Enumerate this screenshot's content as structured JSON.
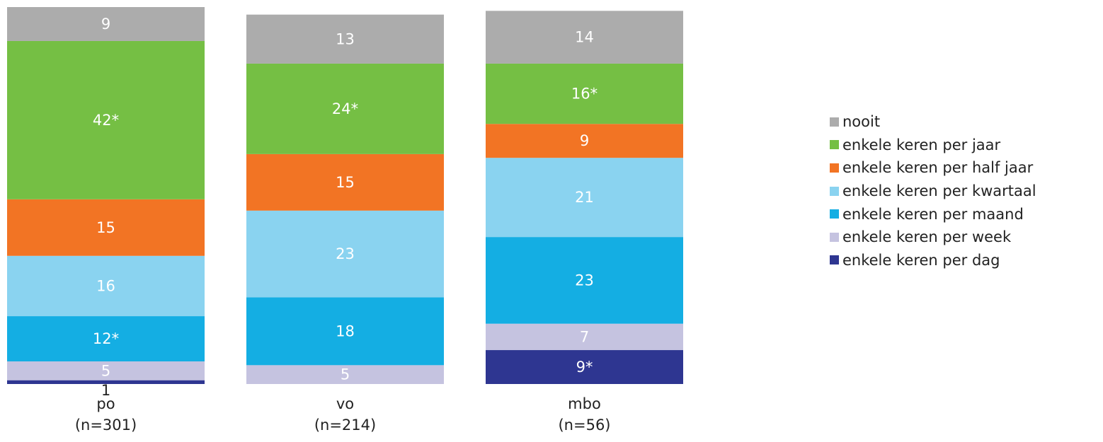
{
  "chart_data": {
    "type": "bar",
    "stacked": true,
    "percent": true,
    "categories": [
      "po",
      "vo",
      "mbo"
    ],
    "category_sublabels": [
      "(n=301)",
      "(n=214)",
      "(n=56)"
    ],
    "series": [
      {
        "name": "enkele keren per dag",
        "color": "#2e3691",
        "values": [
          1,
          0,
          9
        ],
        "labels": [
          "1",
          "",
          "9*"
        ]
      },
      {
        "name": "enkele keren per week",
        "color": "#c5c3e0",
        "values": [
          5,
          5,
          7
        ],
        "labels": [
          "5",
          "5",
          "7"
        ]
      },
      {
        "name": "enkele keren per maand",
        "color": "#14aee3",
        "values": [
          12,
          18,
          23
        ],
        "labels": [
          "12*",
          "18",
          "23"
        ]
      },
      {
        "name": "enkele keren per kwartaal",
        "color": "#8ad3f0",
        "values": [
          16,
          23,
          21
        ],
        "labels": [
          "16",
          "23",
          "21"
        ]
      },
      {
        "name": "enkele keren per half jaar",
        "color": "#f27424",
        "values": [
          15,
          15,
          9
        ],
        "labels": [
          "15",
          "15",
          "9"
        ]
      },
      {
        "name": "enkele keren per jaar",
        "color": "#75bf44",
        "values": [
          42,
          24,
          16
        ],
        "labels": [
          "42*",
          "24*",
          "16*"
        ]
      },
      {
        "name": "nooit",
        "color": "#acacac",
        "values": [
          9,
          13,
          14
        ],
        "labels": [
          "9",
          "13",
          "14"
        ]
      }
    ],
    "legend_order": [
      "nooit",
      "enkele keren per jaar",
      "enkele keren per half jaar",
      "enkele keren per kwartaal",
      "enkele keren per maand",
      "enkele keren per week",
      "enkele keren per dag"
    ],
    "legend_position": "right",
    "grid": false,
    "label_color": "#ffffff",
    "outside_label_color": "#222222"
  }
}
